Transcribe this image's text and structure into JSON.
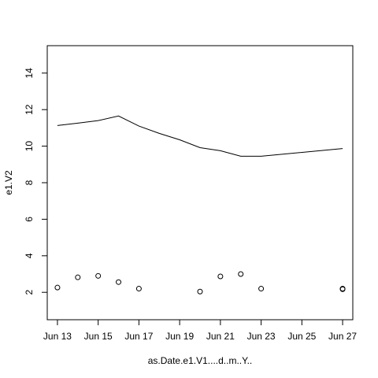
{
  "chart_data": {
    "type": "scatter",
    "x_label": "as.Date.e1.V1....d..m..Y..",
    "y_label": "e1.V2",
    "xlim": [
      12.5,
      27.5
    ],
    "ylim": [
      0.5,
      15.5
    ],
    "xticks": [
      {
        "value": 13,
        "label": "Jun 13"
      },
      {
        "value": 15,
        "label": "Jun 15"
      },
      {
        "value": 17,
        "label": "Jun 17"
      },
      {
        "value": 19,
        "label": "Jun 19"
      },
      {
        "value": 21,
        "label": "Jun 21"
      },
      {
        "value": 23,
        "label": "Jun 23"
      },
      {
        "value": 25,
        "label": "Jun 25"
      },
      {
        "value": 27,
        "label": "Jun 27"
      }
    ],
    "yticks": [
      2,
      4,
      6,
      8,
      10,
      12,
      14
    ],
    "series": [
      {
        "mode": "points",
        "color": "#000000",
        "x": [
          13,
          14,
          15,
          16,
          17,
          20,
          21,
          22,
          23,
          27,
          27
        ],
        "values": [
          2.26,
          2.82,
          2.9,
          2.56,
          2.2,
          2.04,
          2.87,
          3.0,
          2.2,
          2.2,
          2.17
        ]
      },
      {
        "mode": "line",
        "color": "#000000",
        "x": [
          13,
          14,
          15,
          16,
          17,
          18,
          19,
          20,
          21,
          22,
          23,
          27
        ],
        "values": [
          11.13,
          11.26,
          11.4,
          11.65,
          11.1,
          10.7,
          10.35,
          9.92,
          9.75,
          9.45,
          9.45,
          9.87
        ]
      }
    ]
  }
}
